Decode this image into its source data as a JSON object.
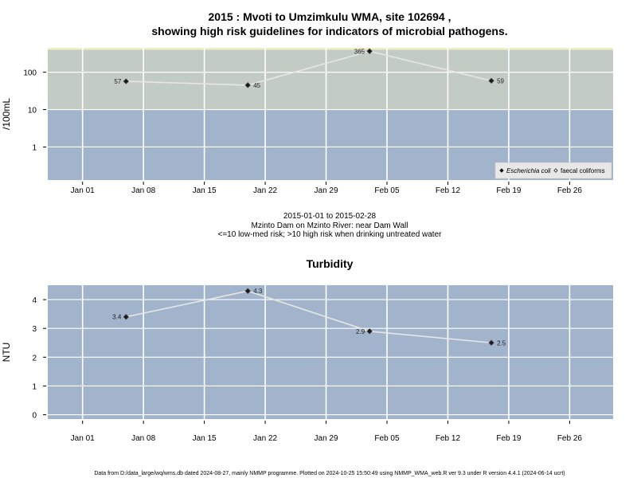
{
  "figure": {
    "title_line1": "2015 : Mvoti to Umzimkulu WMA, site 102694 ,",
    "title_line2": "showing high risk guidelines for indicators of microbial pathogens.",
    "subtitle_line1": "2015-01-01 to 2015-02-28",
    "subtitle_line2": "Mzinto Dam on Mzinto River: near Dam Wall",
    "subtitle_line3": "<=10 low-med risk; >10 high risk when drinking untreated water",
    "footer": "Data from D:/data_large/wq/wms.db dated 2024-08-27, mainly NMMP programme. Plotted on 2024-10-25 15:50:49 using NMMP_WMA_web.R ver 9.3 under R version 4.4.1 (2024-06-14 ucrt)"
  },
  "chart_data": [
    {
      "type": "line",
      "title": "",
      "ylabel": "/100mL",
      "yscale": "log",
      "ylim": [
        0.13,
        450
      ],
      "yticks": [
        1,
        10,
        100
      ],
      "ytick_labels": [
        "1",
        "10",
        "100"
      ],
      "xlim": [
        "2014-12-28",
        "2015-03-03"
      ],
      "xticks": [
        "2015-01-01",
        "2015-01-08",
        "2015-01-15",
        "2015-01-22",
        "2015-01-29",
        "2015-02-05",
        "2015-02-12",
        "2015-02-19",
        "2015-02-26"
      ],
      "xtick_labels": [
        "Jan 01",
        "Jan 08",
        "Jan 15",
        "Jan 22",
        "Jan 29",
        "Feb 05",
        "Feb 12",
        "Feb 19",
        "Feb 26"
      ],
      "grid": true,
      "bands": [
        {
          "from": 0,
          "to": 10,
          "color": "#a2b4cc",
          "label": "low-med risk"
        },
        {
          "from": 10,
          "to": 400,
          "color": "#c3ccc4",
          "label": "high risk"
        },
        {
          "from": 400,
          "to": 450,
          "color": "#f1efc4",
          "label": ""
        }
      ],
      "series": [
        {
          "name": "Escherichia coli",
          "marker": "filled-diamond",
          "x": [
            "2015-01-06",
            "2015-01-20",
            "2015-02-03",
            "2015-02-17"
          ],
          "y": [
            57,
            45,
            365,
            59
          ],
          "labels": [
            "57",
            "45",
            "365",
            "59"
          ],
          "label_side": [
            "left",
            "right",
            "left",
            "right"
          ]
        }
      ],
      "legend": {
        "position": "bottom-right",
        "entries": [
          {
            "label": "Escherichia coli",
            "marker": "filled-diamond"
          },
          {
            "label": "faecal coliforms",
            "marker": "open-diamond"
          }
        ]
      }
    },
    {
      "type": "line",
      "title": "Turbidity",
      "ylabel": "NTU",
      "yscale": "linear",
      "ylim": [
        -0.15,
        4.5
      ],
      "yticks": [
        0,
        1,
        2,
        3,
        4
      ],
      "ytick_labels": [
        "0",
        "1",
        "2",
        "3",
        "4"
      ],
      "xlim": [
        "2014-12-28",
        "2015-03-03"
      ],
      "xticks": [
        "2015-01-01",
        "2015-01-08",
        "2015-01-15",
        "2015-01-22",
        "2015-01-29",
        "2015-02-05",
        "2015-02-12",
        "2015-02-19",
        "2015-02-26"
      ],
      "xtick_labels": [
        "Jan 01",
        "Jan 08",
        "Jan 15",
        "Jan 22",
        "Jan 29",
        "Feb 05",
        "Feb 12",
        "Feb 19",
        "Feb 26"
      ],
      "grid": true,
      "background_color": "#a2b4cc",
      "series": [
        {
          "name": "",
          "marker": "filled-diamond",
          "x": [
            "2015-01-06",
            "2015-01-20",
            "2015-02-03",
            "2015-02-17"
          ],
          "y": [
            3.4,
            4.3,
            2.9,
            2.5
          ],
          "labels": [
            "3.4",
            "4.3",
            "2.9",
            "2.5"
          ],
          "label_side": [
            "left",
            "right",
            "left",
            "right"
          ]
        }
      ]
    }
  ]
}
